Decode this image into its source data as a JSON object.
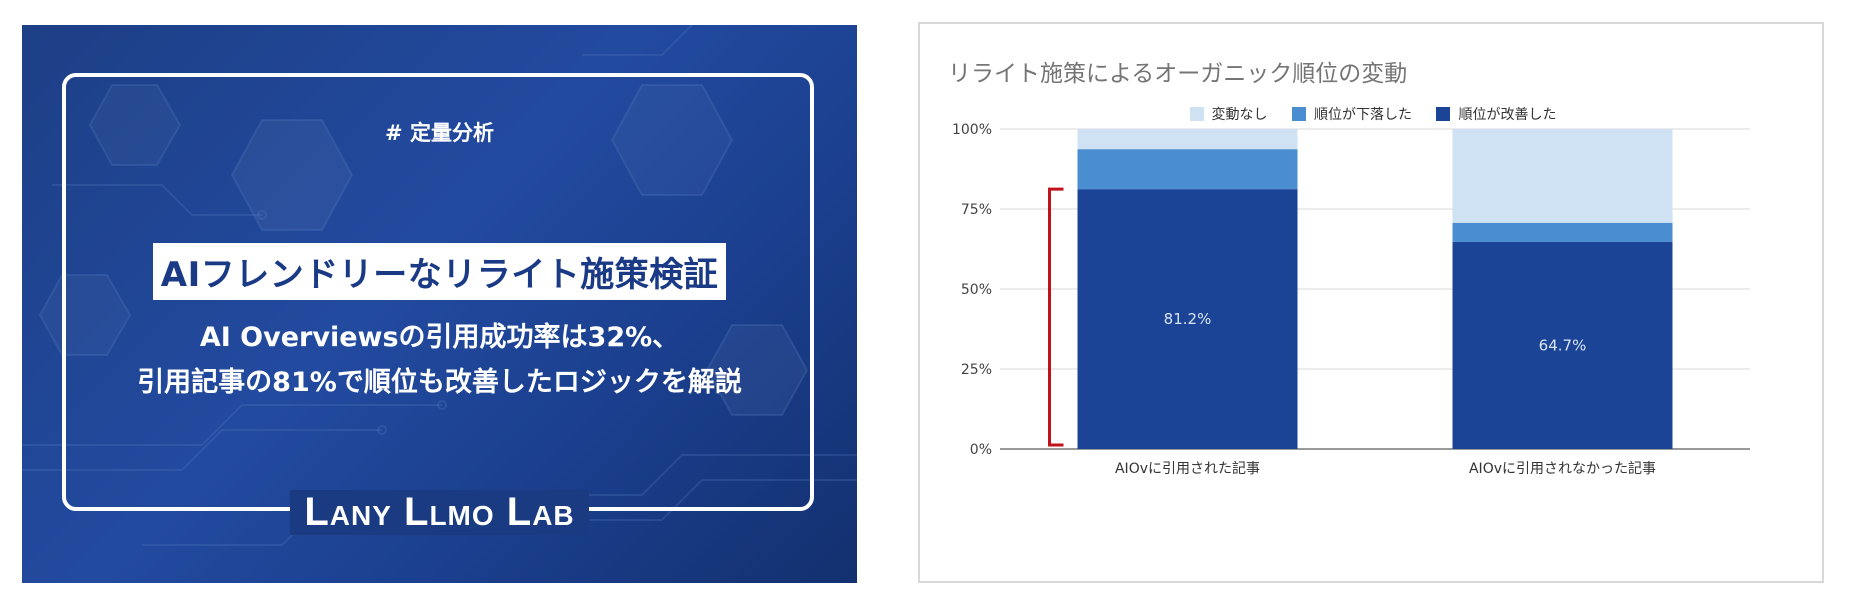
{
  "banner": {
    "tag": "# 定量分析",
    "headline": "AIフレンドリーなリライト施策検証",
    "subtitle_line1": "AI Overviewsの引用成功率は32%、",
    "subtitle_line2": "引用記事の81%で順位も改善したロジックを解説",
    "logo": "Lany Llmo Lab"
  },
  "chart_data": {
    "type": "bar",
    "stacked": true,
    "title": "リライト施策によるオーガニック順位の変動",
    "categories": [
      "AIOvに引用された記事",
      "AIOvに引用されなかった記事"
    ],
    "series": [
      {
        "name": "順位が改善した",
        "values": [
          81.2,
          64.7
        ],
        "color": "#1c4496",
        "labels": [
          "81.2%",
          "64.7%"
        ]
      },
      {
        "name": "順位が下落した",
        "values": [
          12.5,
          6.0
        ],
        "color": "#4a8ed1"
      },
      {
        "name": "変動なし",
        "values": [
          6.3,
          29.3
        ],
        "color": "#cfe2f3"
      }
    ],
    "legend_order": [
      "変動なし",
      "順位が下落した",
      "順位が改善した"
    ],
    "ylim": [
      0,
      100
    ],
    "yticks": [
      0,
      25,
      50,
      75,
      100
    ],
    "ytick_labels": [
      "0%",
      "25%",
      "50%",
      "75%",
      "100%"
    ],
    "grid": true,
    "legend_position": "top",
    "annotation": {
      "type": "bracket",
      "color": "#c0121b",
      "from": 0,
      "to": 81.2
    }
  }
}
